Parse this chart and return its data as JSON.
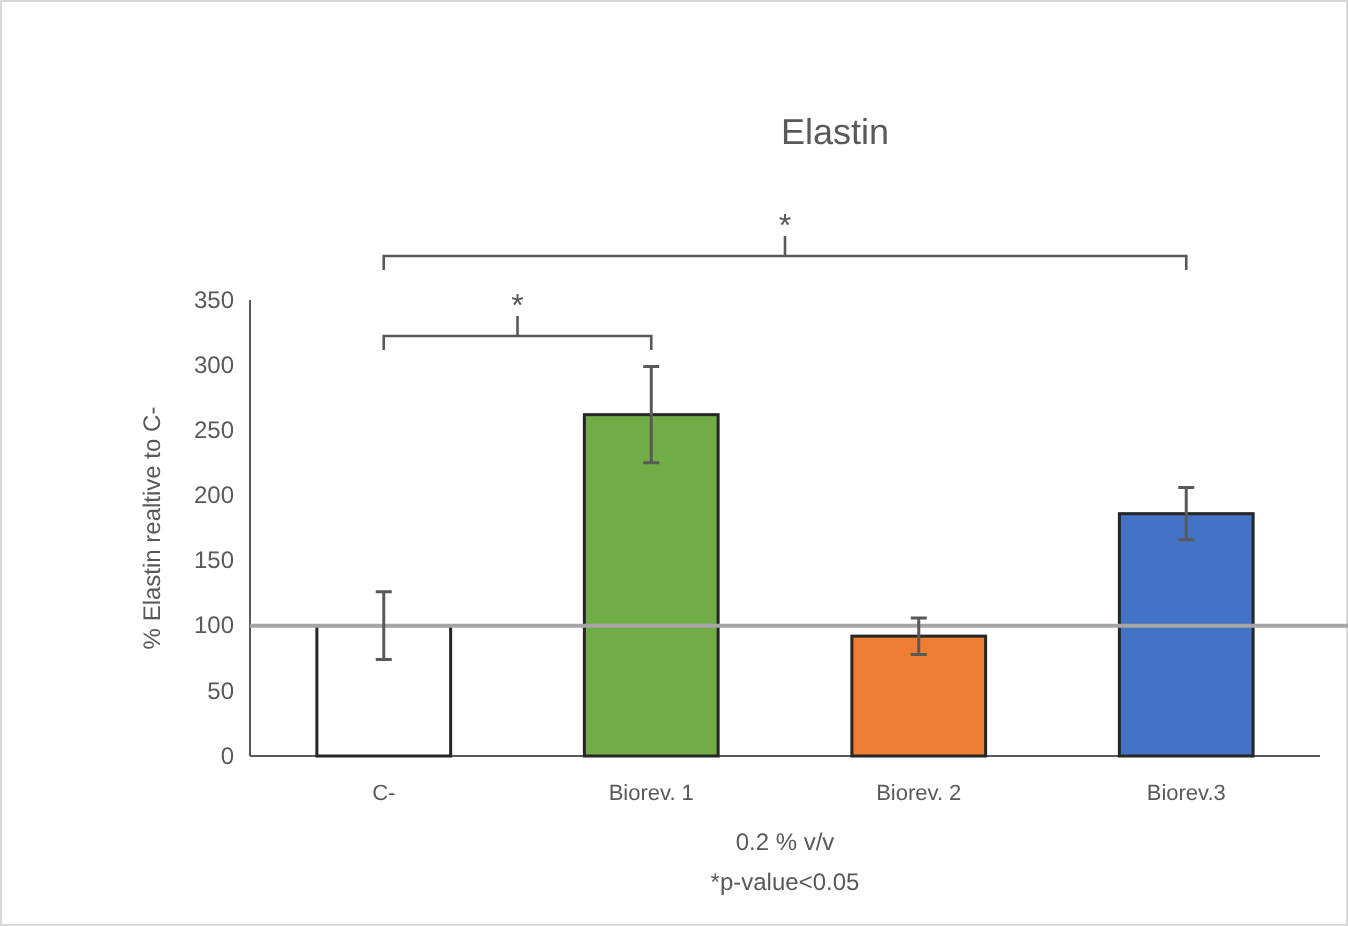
{
  "chart_data": {
    "type": "bar",
    "title": "Elastin",
    "xlabel": "0.2 % v/v",
    "ylabel": "% Elastin realtive to C-",
    "categories": [
      "C-",
      "Biorev. 1",
      "Biorev. 2",
      "Biorev.3"
    ],
    "values": [
      100,
      262,
      92,
      186
    ],
    "colors": [
      "#ffffff",
      "#70ad47",
      "#ed7d31",
      "#4472c4"
    ],
    "errors": [
      26,
      37,
      14,
      20
    ],
    "ylim": [
      0,
      350
    ],
    "yticks": [
      0,
      50,
      100,
      150,
      200,
      250,
      300,
      350
    ],
    "grid": false,
    "ref_lines": [
      {
        "axis": "y",
        "value": 100,
        "color": "#a6a6a6"
      }
    ],
    "annotations": [
      "*",
      "*",
      "*p-value<0.05"
    ]
  }
}
